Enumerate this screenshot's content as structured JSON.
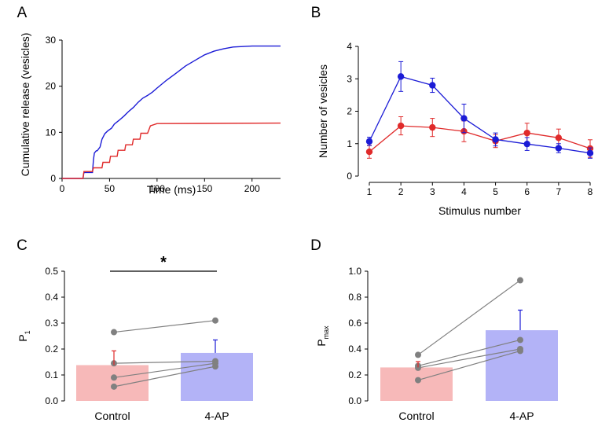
{
  "colors": {
    "blue": "#1b1bd6",
    "red": "#e02a2a",
    "pink_bar": "#f7b9b9",
    "blue_bar": "#b3b3f7",
    "gray": "#808080",
    "bar_err_red": "#e02a2a",
    "bar_err_blue": "#1b1bd6"
  },
  "chart_data": [
    {
      "panel": "A",
      "type": "line",
      "xlabel": "Time (ms)",
      "ylabel": "Cumulative release (vesicles)",
      "xlim": [
        0,
        230
      ],
      "ylim": [
        0,
        30
      ],
      "xticks": [
        "0",
        "50",
        "100",
        "150",
        "200"
      ],
      "yticks": [
        "0",
        "10",
        "20",
        "30"
      ],
      "series": [
        {
          "name": "blue",
          "color": "blue",
          "x": [
            0,
            22,
            23,
            32,
            33,
            34,
            36,
            37,
            40,
            42,
            45,
            48,
            52,
            55,
            60,
            65,
            70,
            75,
            80,
            85,
            90,
            95,
            100,
            110,
            120,
            130,
            140,
            150,
            160,
            170,
            180,
            190,
            200,
            215,
            230
          ],
          "y": [
            0,
            0,
            1.3,
            1.3,
            4,
            5.5,
            6.0,
            6.0,
            6.8,
            8.5,
            9.7,
            10.3,
            10.9,
            11.8,
            12.6,
            13.5,
            14.5,
            15.4,
            16.5,
            17.4,
            18.0,
            18.7,
            19.6,
            21.3,
            22.8,
            24.4,
            25.6,
            26.8,
            27.6,
            28.1,
            28.5,
            28.6,
            28.7,
            28.7,
            28.7
          ]
        },
        {
          "name": "red",
          "color": "red",
          "x": [
            0,
            22,
            23,
            32,
            33,
            42,
            43,
            50,
            51,
            58,
            59,
            66,
            67,
            74,
            75,
            82,
            83,
            90,
            93,
            100,
            230
          ],
          "y": [
            0,
            0,
            1.5,
            1.5,
            2.3,
            2.3,
            3.5,
            3.5,
            4.8,
            4.8,
            6.1,
            6.1,
            7.3,
            7.3,
            8.5,
            8.5,
            9.8,
            9.8,
            11.4,
            11.9,
            12.0
          ]
        }
      ]
    },
    {
      "panel": "B",
      "type": "line",
      "xlabel": "Stimulus number",
      "ylabel": "Number of vesicles",
      "xlim": [
        1,
        8
      ],
      "ylim": [
        0,
        4
      ],
      "xticks": [
        "1",
        "2",
        "3",
        "4",
        "5",
        "6",
        "7",
        "8"
      ],
      "yticks": [
        "0",
        "1",
        "2",
        "3",
        "4"
      ],
      "series": [
        {
          "name": "red",
          "color": "red",
          "x": [
            1,
            2,
            3,
            4,
            5,
            6,
            7,
            8
          ],
          "y": [
            0.75,
            1.55,
            1.5,
            1.38,
            1.08,
            1.33,
            1.18,
            0.85
          ],
          "err": [
            0.2,
            0.28,
            0.28,
            0.32,
            0.2,
            0.3,
            0.27,
            0.27
          ]
        },
        {
          "name": "blue",
          "color": "blue",
          "x": [
            1,
            2,
            3,
            4,
            5,
            6,
            7,
            8
          ],
          "y": [
            1.07,
            3.07,
            2.8,
            1.78,
            1.13,
            0.99,
            0.86,
            0.71
          ],
          "err": [
            0.13,
            0.46,
            0.22,
            0.44,
            0.2,
            0.2,
            0.14,
            0.16
          ]
        }
      ]
    },
    {
      "panel": "C",
      "type": "bar",
      "ylabel": "P",
      "ylabel_sub": "1",
      "categories": [
        "Control",
        "4-AP"
      ],
      "values": [
        0.138,
        0.185
      ],
      "err": [
        0.055,
        0.05
      ],
      "ylim": [
        0,
        0.5
      ],
      "yticks": [
        "0.0",
        "0.1",
        "0.2",
        "0.3",
        "0.4",
        "0.5"
      ],
      "paired": [
        [
          0.265,
          0.31
        ],
        [
          0.145,
          0.153
        ],
        [
          0.09,
          0.145
        ],
        [
          0.055,
          0.133
        ]
      ],
      "significance": "*"
    },
    {
      "panel": "D",
      "type": "bar",
      "ylabel": "P",
      "ylabel_sub": "max",
      "categories": [
        "Control",
        "4-AP"
      ],
      "values": [
        0.258,
        0.545
      ],
      "err": [
        0.045,
        0.155
      ],
      "ylim": [
        0,
        1.0
      ],
      "yticks": [
        "0.0",
        "0.2",
        "0.4",
        "0.6",
        "0.8",
        "1.0"
      ],
      "paired": [
        [
          0.355,
          0.93
        ],
        [
          0.27,
          0.47
        ],
        [
          0.255,
          0.4
        ],
        [
          0.16,
          0.385
        ]
      ]
    }
  ]
}
